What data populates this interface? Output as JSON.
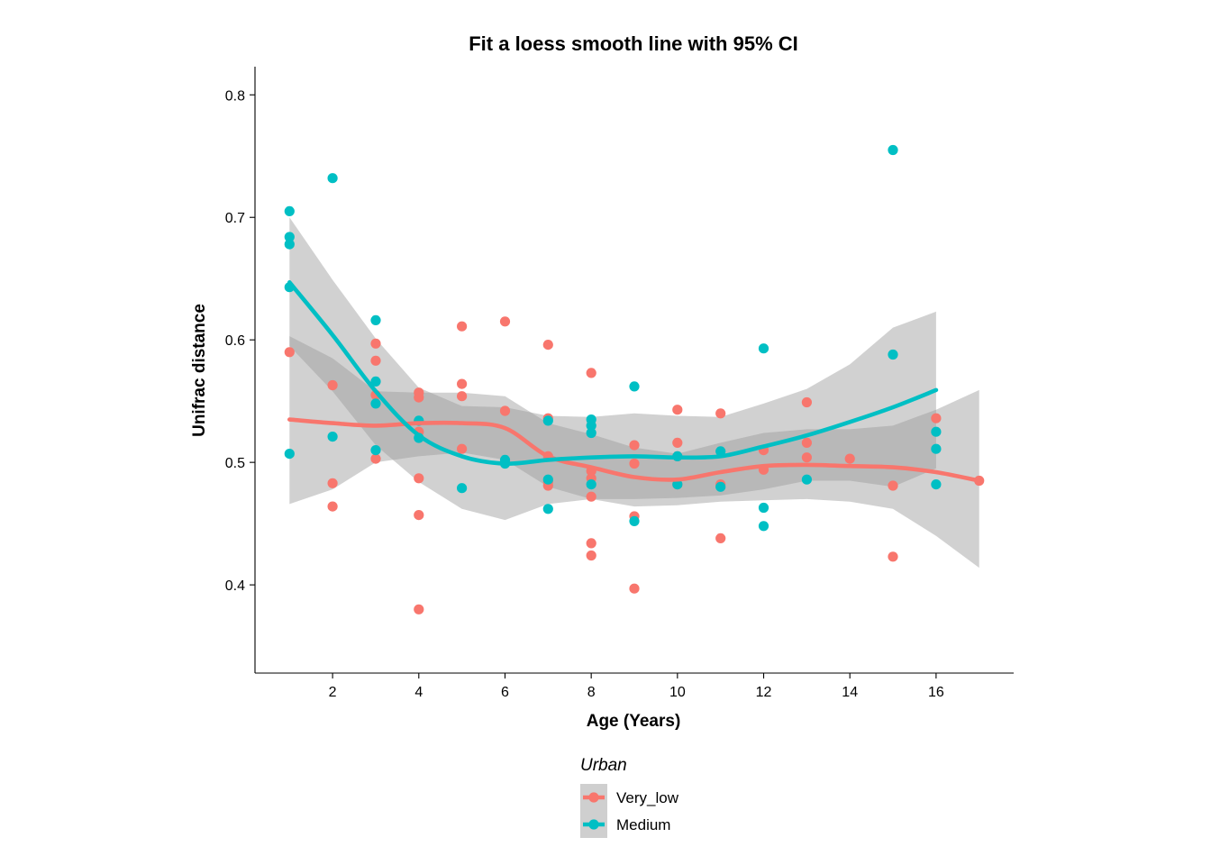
{
  "chart_data": {
    "type": "scatter",
    "title": "Fit a loess smooth line with 95% CI",
    "xlabel": "Age (Years)",
    "ylabel": "Unifrac distance",
    "xlim": [
      0.2,
      17.8
    ],
    "ylim": [
      0.328,
      0.823
    ],
    "xticks": [
      2,
      4,
      6,
      8,
      10,
      12,
      14,
      16
    ],
    "yticks": [
      0.4,
      0.5,
      0.6,
      0.7,
      0.8
    ],
    "xtick_labels": [
      "2",
      "4",
      "6",
      "8",
      "10",
      "12",
      "14",
      "16"
    ],
    "ytick_labels": [
      "0.4",
      "0.5",
      "0.6",
      "0.7",
      "0.8"
    ],
    "grid": false,
    "legend": {
      "title": "Urban",
      "placement": "bottom",
      "entries": [
        "Very_low",
        "Medium"
      ]
    },
    "series": [
      {
        "name": "Very_low",
        "color": "#F8766D",
        "points": [
          [
            1,
            0.59
          ],
          [
            2,
            0.563
          ],
          [
            2,
            0.483
          ],
          [
            2,
            0.464
          ],
          [
            3,
            0.597
          ],
          [
            3,
            0.583
          ],
          [
            3,
            0.555
          ],
          [
            3,
            0.503
          ],
          [
            4,
            0.557
          ],
          [
            4,
            0.553
          ],
          [
            4,
            0.525
          ],
          [
            4,
            0.487
          ],
          [
            4,
            0.457
          ],
          [
            4,
            0.38
          ],
          [
            5,
            0.611
          ],
          [
            5,
            0.564
          ],
          [
            5,
            0.554
          ],
          [
            5,
            0.511
          ],
          [
            6,
            0.615
          ],
          [
            6,
            0.542
          ],
          [
            6,
            0.501
          ],
          [
            7,
            0.596
          ],
          [
            7,
            0.536
          ],
          [
            7,
            0.505
          ],
          [
            7,
            0.484
          ],
          [
            7,
            0.481
          ],
          [
            8,
            0.573
          ],
          [
            8,
            0.493
          ],
          [
            8,
            0.487
          ],
          [
            8,
            0.472
          ],
          [
            8,
            0.434
          ],
          [
            8,
            0.424
          ],
          [
            9,
            0.514
          ],
          [
            9,
            0.499
          ],
          [
            9,
            0.456
          ],
          [
            9,
            0.397
          ],
          [
            10,
            0.543
          ],
          [
            10,
            0.516
          ],
          [
            10,
            0.505
          ],
          [
            10,
            0.482
          ],
          [
            11,
            0.54
          ],
          [
            11,
            0.482
          ],
          [
            11,
            0.438
          ],
          [
            12,
            0.51
          ],
          [
            12,
            0.494
          ],
          [
            13,
            0.549
          ],
          [
            13,
            0.516
          ],
          [
            13,
            0.504
          ],
          [
            14,
            0.503
          ],
          [
            15,
            0.481
          ],
          [
            15,
            0.423
          ],
          [
            16,
            0.536
          ],
          [
            17,
            0.485
          ]
        ],
        "smooth": {
          "x": [
            1,
            2,
            3,
            4,
            5,
            6,
            7,
            8,
            9,
            10,
            11,
            12,
            13,
            14,
            15,
            16,
            17
          ],
          "fit": [
            0.535,
            0.532,
            0.53,
            0.532,
            0.532,
            0.528,
            0.505,
            0.496,
            0.488,
            0.486,
            0.492,
            0.497,
            0.498,
            0.497,
            0.496,
            0.492,
            0.485
          ],
          "lower": [
            0.466,
            0.478,
            0.5,
            0.505,
            0.508,
            0.502,
            0.48,
            0.47,
            0.464,
            0.465,
            0.468,
            0.469,
            0.47,
            0.468,
            0.462,
            0.44,
            0.414
          ],
          "upper": [
            0.603,
            0.585,
            0.558,
            0.557,
            0.557,
            0.554,
            0.532,
            0.523,
            0.512,
            0.507,
            0.516,
            0.524,
            0.527,
            0.527,
            0.53,
            0.543,
            0.559
          ]
        }
      },
      {
        "name": "Medium",
        "color": "#00BFC4",
        "points": [
          [
            1,
            0.705
          ],
          [
            1,
            0.684
          ],
          [
            1,
            0.678
          ],
          [
            1,
            0.643
          ],
          [
            1,
            0.507
          ],
          [
            2,
            0.732
          ],
          [
            2,
            0.521
          ],
          [
            3,
            0.616
          ],
          [
            3,
            0.566
          ],
          [
            3,
            0.548
          ],
          [
            3,
            0.51
          ],
          [
            4,
            0.534
          ],
          [
            4,
            0.52
          ],
          [
            5,
            0.479
          ],
          [
            6,
            0.502
          ],
          [
            6,
            0.499
          ],
          [
            7,
            0.534
          ],
          [
            7,
            0.486
          ],
          [
            7,
            0.462
          ],
          [
            8,
            0.535
          ],
          [
            8,
            0.53
          ],
          [
            8,
            0.524
          ],
          [
            8,
            0.482
          ],
          [
            9,
            0.562
          ],
          [
            9,
            0.452
          ],
          [
            10,
            0.505
          ],
          [
            10,
            0.482
          ],
          [
            11,
            0.509
          ],
          [
            11,
            0.48
          ],
          [
            12,
            0.593
          ],
          [
            12,
            0.463
          ],
          [
            12,
            0.448
          ],
          [
            13,
            0.486
          ],
          [
            15,
            0.755
          ],
          [
            15,
            0.588
          ],
          [
            16,
            0.525
          ],
          [
            16,
            0.511
          ],
          [
            16,
            0.482
          ]
        ],
        "smooth": {
          "x": [
            1,
            2,
            3,
            4,
            5,
            6,
            7,
            8,
            9,
            10,
            11,
            12,
            13,
            14,
            15,
            16
          ],
          "fit": [
            0.647,
            0.604,
            0.558,
            0.522,
            0.505,
            0.499,
            0.502,
            0.504,
            0.505,
            0.504,
            0.505,
            0.513,
            0.522,
            0.533,
            0.545,
            0.559
          ],
          "lower": [
            0.595,
            0.558,
            0.514,
            0.484,
            0.462,
            0.453,
            0.466,
            0.47,
            0.47,
            0.471,
            0.473,
            0.478,
            0.485,
            0.485,
            0.48,
            0.495
          ],
          "upper": [
            0.7,
            0.649,
            0.601,
            0.561,
            0.546,
            0.545,
            0.538,
            0.537,
            0.54,
            0.538,
            0.537,
            0.548,
            0.56,
            0.58,
            0.61,
            0.623
          ]
        }
      }
    ]
  }
}
